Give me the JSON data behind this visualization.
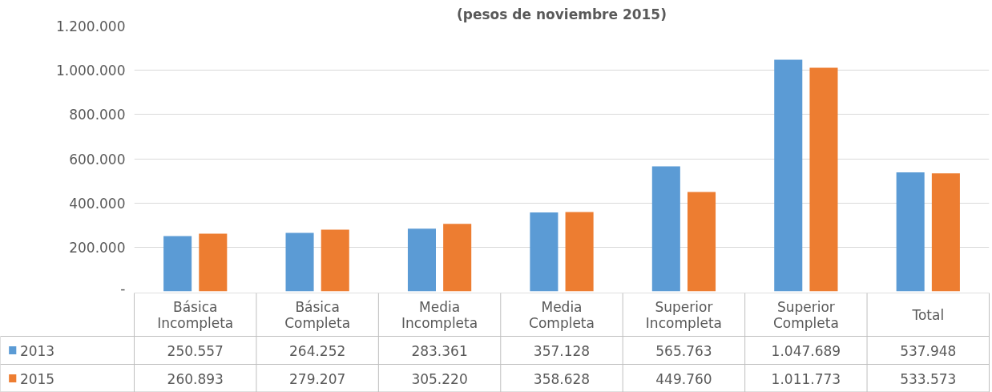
{
  "chart_data": {
    "type": "bar",
    "title": "(pesos de noviembre 2015)",
    "categories": [
      "Básica\nIncompleta",
      "Básica\nCompleta",
      "Media\nIncompleta",
      "Media\nCompleta",
      "Superior\nIncompleta",
      "Superior\nCompleta",
      "Total"
    ],
    "series": [
      {
        "name": "2013",
        "color": "#5b9bd5",
        "values": [
          250557,
          264252,
          283361,
          357128,
          565763,
          1047689,
          537948
        ],
        "value_labels": [
          "250.557",
          "264.252",
          "283.361",
          "357.128",
          "565.763",
          "1.047.689",
          "537.948"
        ]
      },
      {
        "name": "2015",
        "color": "#ed7d31",
        "values": [
          260893,
          279207,
          305220,
          358628,
          449760,
          1011773,
          533573
        ],
        "value_labels": [
          "260.893",
          "279.207",
          "305.220",
          "358.628",
          "449.760",
          "1.011.773",
          "533.573"
        ]
      }
    ],
    "ylim": [
      0,
      1200000
    ],
    "yticks": [
      {
        "value": 0,
        "label": "-"
      },
      {
        "value": 200000,
        "label": "200.000"
      },
      {
        "value": 400000,
        "label": "400.000"
      },
      {
        "value": 600000,
        "label": "600.000"
      },
      {
        "value": 800000,
        "label": "800.000"
      },
      {
        "value": 1000000,
        "label": "1.000.000"
      },
      {
        "value": 1200000,
        "label": "1.200.000"
      }
    ],
    "grid": "y",
    "legend": "bottom"
  }
}
